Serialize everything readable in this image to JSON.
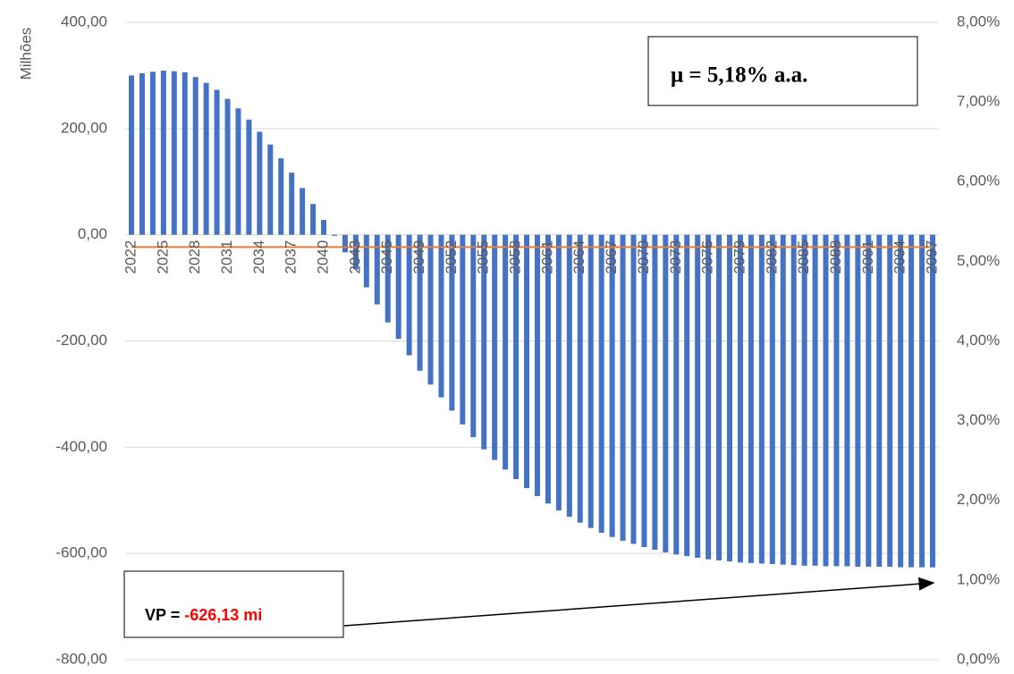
{
  "chart_data": {
    "type": "bar",
    "y_label": "Milhões",
    "categories": [
      "2022",
      null,
      null,
      "2025",
      null,
      null,
      "2028",
      null,
      null,
      "2031",
      null,
      null,
      "2034",
      null,
      null,
      "2037",
      null,
      null,
      "2040",
      null,
      null,
      "2043",
      null,
      null,
      "2046",
      null,
      null,
      "2049",
      null,
      null,
      "2052",
      null,
      null,
      "2055",
      null,
      null,
      "2058",
      null,
      null,
      "2061",
      null,
      null,
      "2064",
      null,
      null,
      "2067",
      null,
      null,
      "2070",
      null,
      null,
      "2073",
      null,
      null,
      "2076",
      null,
      null,
      "2079",
      null,
      null,
      "2082",
      null,
      null,
      "2085",
      null,
      null,
      "2088",
      null,
      null,
      "2091",
      null,
      null,
      "2094",
      null,
      null,
      "2097"
    ],
    "series": [
      {
        "type": "bar",
        "color": "#4472c4",
        "values": [
          300,
          304,
          307,
          309,
          308,
          306,
          297,
          286,
          273,
          256,
          238,
          217,
          194,
          170,
          144,
          117,
          88,
          58,
          28,
          -2,
          -33,
          -65,
          -99,
          -131,
          -165,
          -196,
          -227,
          -256,
          -282,
          -306,
          -331,
          -357,
          -381,
          -404,
          -424,
          -442,
          -460,
          -477,
          -492,
          -506,
          -519,
          -531,
          -542,
          -552,
          -561,
          -569,
          -576,
          -582,
          -588,
          -593,
          -598,
          -602,
          -605,
          -608,
          -611,
          -613,
          -615,
          -617,
          -618,
          -619,
          -620,
          -621,
          -622,
          -623,
          -623,
          -624,
          -624,
          -624,
          -625,
          -625,
          -625,
          -625,
          -626,
          -626,
          -626,
          -626.13
        ]
      },
      {
        "type": "line",
        "color": "#ed7d31",
        "axis": "y2",
        "values": [
          5.18,
          5.18,
          5.18,
          5.18,
          5.18,
          5.18,
          5.18,
          5.18,
          5.18,
          5.18,
          5.18,
          5.18,
          5.18,
          5.18,
          5.18,
          5.18,
          5.18,
          5.18,
          5.18,
          5.18,
          5.18,
          5.18,
          5.18,
          5.18,
          5.18,
          5.18,
          5.18,
          5.18,
          5.18,
          5.18,
          5.18,
          5.18,
          5.18,
          5.18,
          5.18,
          5.18,
          5.18,
          5.18,
          5.18,
          5.18,
          5.18,
          5.18,
          5.18,
          5.18,
          5.18,
          5.18,
          5.18,
          5.18,
          5.18,
          5.18,
          5.18,
          5.18,
          5.18,
          5.18,
          5.18,
          5.18,
          5.18,
          5.18,
          5.18,
          5.18,
          5.18,
          5.18,
          5.18,
          5.18,
          5.18,
          5.18,
          5.18,
          5.18,
          5.18,
          5.18,
          5.18,
          5.18,
          5.18,
          5.18,
          5.18,
          5.18
        ]
      }
    ],
    "ylim": [
      -800,
      400
    ],
    "yticks": [
      {
        "value": -800,
        "label": "-800,00"
      },
      {
        "value": -600,
        "label": "-600,00"
      },
      {
        "value": -400,
        "label": "-400,00"
      },
      {
        "value": -200,
        "label": "-200,00"
      },
      {
        "value": 0,
        "label": "0,00"
      },
      {
        "value": 200,
        "label": "200,00"
      },
      {
        "value": 400,
        "label": "400,00"
      }
    ],
    "y2lim": [
      0,
      8
    ],
    "y2ticks": [
      {
        "value": 0,
        "label": "0,00%"
      },
      {
        "value": 1,
        "label": "1,00%"
      },
      {
        "value": 2,
        "label": "2,00%"
      },
      {
        "value": 3,
        "label": "3,00%"
      },
      {
        "value": 4,
        "label": "4,00%"
      },
      {
        "value": 5,
        "label": "5,00%"
      },
      {
        "value": 6,
        "label": "6,00%"
      },
      {
        "value": 7,
        "label": "7,00%"
      },
      {
        "value": 8,
        "label": "8,00%"
      }
    ],
    "grid": true,
    "annotations": [
      {
        "text": "μ = 5,18% a.a."
      },
      {
        "text": "VP =",
        "highlight": "-626,13 mi"
      }
    ]
  }
}
